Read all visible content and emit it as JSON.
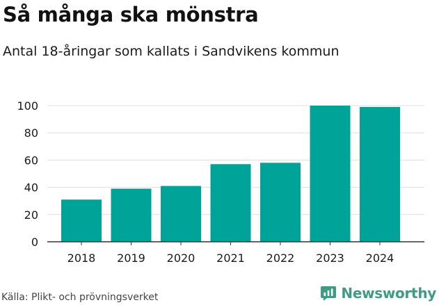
{
  "title": "Så många ska mönstra",
  "subtitle": "Antal 18-åringar som kallats i Sandvikens kommun",
  "source": "Källa: Plikt- och prövningsverket",
  "brand": {
    "name": "Newsworthy",
    "icon": "newsworthy-logo-icon",
    "color": "#3f9a86"
  },
  "colors": {
    "bar": "#00a398",
    "grid": "#dddddd",
    "axis": "#333333",
    "text": "#1a1a1a"
  },
  "chart_data": {
    "type": "bar",
    "title": "Så många ska mönstra",
    "subtitle": "Antal 18-åringar som kallats i Sandvikens kommun",
    "xlabel": "",
    "ylabel": "",
    "categories": [
      "2018",
      "2019",
      "2020",
      "2021",
      "2022",
      "2023",
      "2024"
    ],
    "values": [
      31,
      39,
      41,
      57,
      58,
      100,
      99
    ],
    "ylim": [
      0,
      100
    ],
    "yticks": [
      0,
      20,
      40,
      60,
      80,
      100
    ],
    "grid": true,
    "legend": "none"
  }
}
